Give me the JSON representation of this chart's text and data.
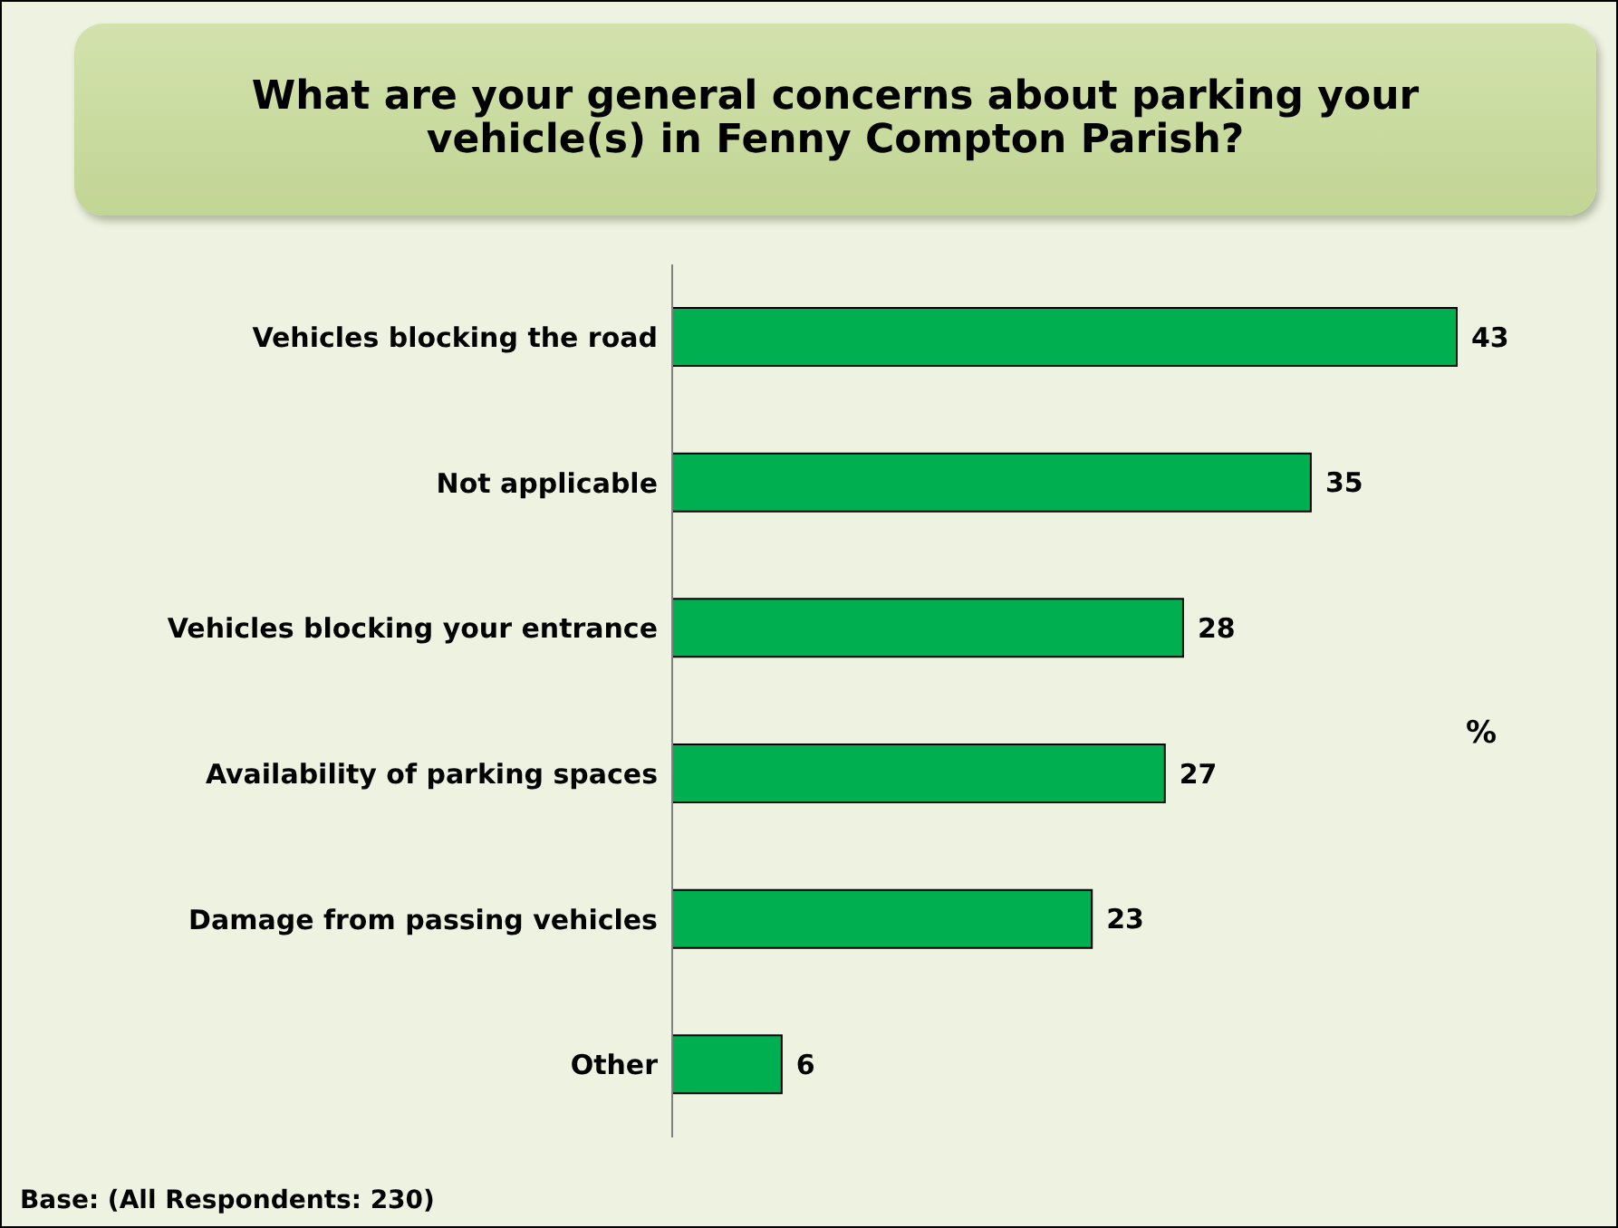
{
  "chart_data": {
    "type": "bar",
    "orientation": "horizontal",
    "title": "What are your general concerns about parking your vehicle(s) in Fenny Compton Parish?",
    "categories": [
      "Vehicles blocking the road",
      "Not applicable",
      "Vehicles blocking your entrance",
      "Availability of parking spaces",
      "Damage from passing vehicles",
      "Other"
    ],
    "values": [
      43,
      35,
      28,
      27,
      23,
      6
    ],
    "color": "#00b050",
    "data_labels": true,
    "annotations": [
      "%",
      "Base: (All Respondents: 230)"
    ]
  }
}
